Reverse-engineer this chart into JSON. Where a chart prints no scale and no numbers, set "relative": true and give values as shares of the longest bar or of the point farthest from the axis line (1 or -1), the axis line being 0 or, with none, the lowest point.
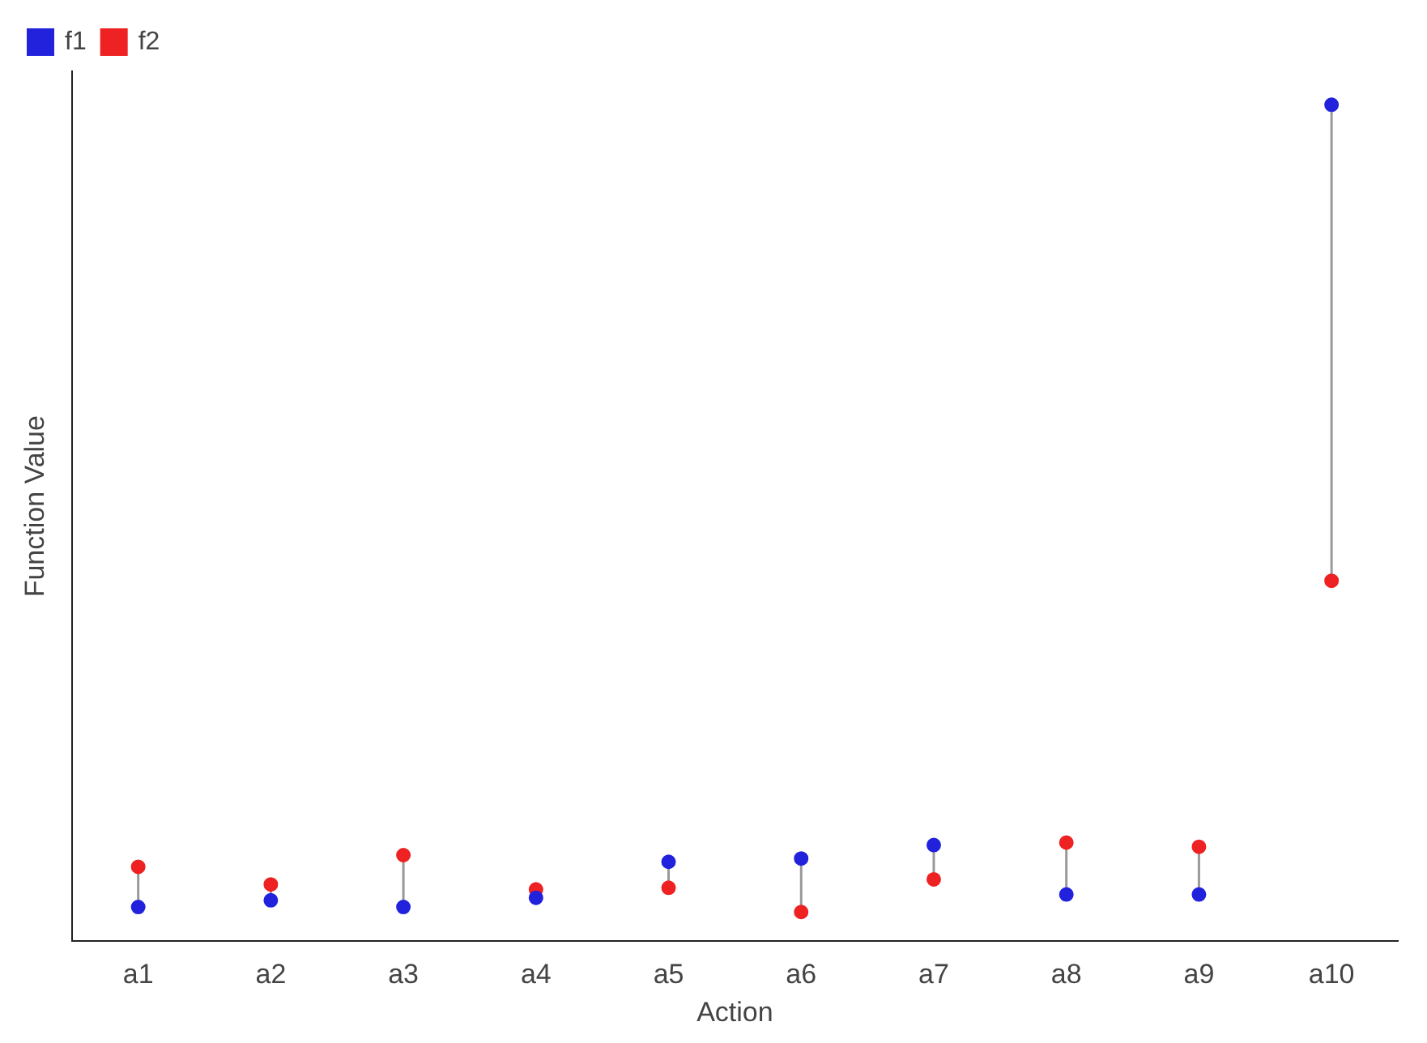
{
  "chart_data": {
    "type": "scatter",
    "xlabel": "Action",
    "ylabel": "Function Value",
    "relative": true,
    "marker": "circle",
    "legend": "top left",
    "grid": false,
    "categories": [
      "a1",
      "a2",
      "a3",
      "a4",
      "a5",
      "a6",
      "a7",
      "a8",
      "a9",
      "a10"
    ],
    "series": [
      {
        "name": "f1",
        "color": "#2222dd",
        "values": [
          0.041,
          0.049,
          0.041,
          0.052,
          0.095,
          0.099,
          0.115,
          0.056,
          0.056,
          1
        ]
      },
      {
        "name": "f2",
        "color": "#ee2222",
        "values": [
          0.089,
          0.068,
          0.103,
          0.062,
          0.064,
          0.035,
          0.074,
          0.118,
          0.113,
          0.431
        ]
      }
    ]
  }
}
